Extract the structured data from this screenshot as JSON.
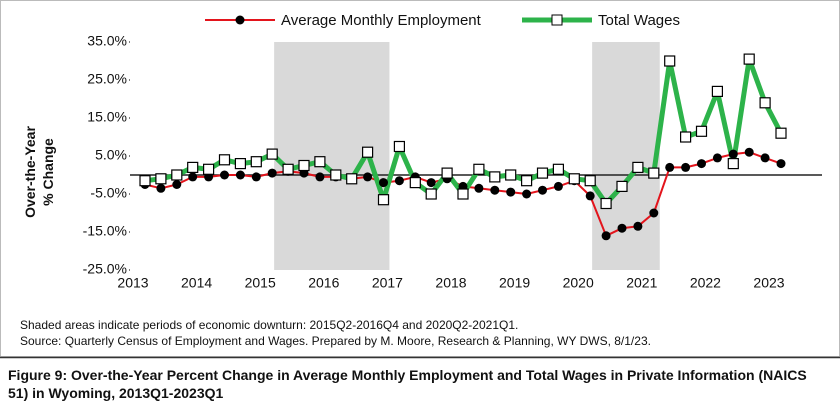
{
  "chart_data": {
    "type": "line",
    "ylabel": [
      "Over-the-Year",
      "% Change"
    ],
    "categories": [
      "2013",
      null,
      null,
      null,
      "2014",
      null,
      null,
      null,
      "2015",
      null,
      null,
      null,
      "2016",
      null,
      null,
      null,
      "2017",
      null,
      null,
      null,
      "2018",
      null,
      null,
      null,
      "2019",
      null,
      null,
      null,
      "2020",
      null,
      null,
      null,
      "2021",
      null,
      null,
      null,
      "2022",
      null,
      null,
      null,
      "2023"
    ],
    "series": [
      {
        "name": "Average Monthly Employment",
        "color": "#e3141c",
        "marker": "circle",
        "values": [
          -2.5,
          -3.5,
          -2.5,
          -0.5,
          -0.5,
          0,
          0,
          -0.5,
          0.5,
          1,
          0.5,
          -0.5,
          -0.5,
          -1,
          -0.5,
          -2,
          -1.5,
          -0.5,
          -2,
          -1,
          -3,
          -3.5,
          -4,
          -4.5,
          -5,
          -4,
          -3,
          -1.5,
          -5.5,
          -16,
          -14,
          -13.5,
          -10,
          2,
          2,
          3,
          4.5,
          5.5,
          6,
          4.5,
          3
        ]
      },
      {
        "name": "Total Wages",
        "color": "#2db34a",
        "marker": "square",
        "values": [
          -1.5,
          -1,
          0,
          2,
          1.5,
          4,
          3,
          3.5,
          5.5,
          1.5,
          2.5,
          3.5,
          0,
          -1,
          6,
          -6.5,
          7.5,
          -2,
          -5,
          0.5,
          -5,
          1.5,
          -0.5,
          0,
          -1.5,
          0.5,
          1.5,
          -1,
          -1.5,
          -7.5,
          -3,
          2,
          0.5,
          30,
          10,
          11.5,
          22,
          3,
          30.5,
          19,
          11
        ]
      }
    ],
    "shaded": [
      [
        9,
        15
      ],
      [
        29,
        32
      ]
    ],
    "ylim": [
      -25,
      35
    ],
    "yticks": [
      {
        "value": -25,
        "label": "-25.0%"
      },
      {
        "value": -15,
        "label": "-15.0%"
      },
      {
        "value": -5,
        "label": "-5.0%"
      },
      {
        "value": 5,
        "label": "5.0%"
      },
      {
        "value": 15,
        "label": "15.0%"
      },
      {
        "value": 25,
        "label": "25.0%"
      },
      {
        "value": 35,
        "label": "35.0%"
      }
    ],
    "notes": [
      "Shaded areas indicate periods of economic downturn: 2015Q2-2016Q4 and 2020Q2-2021Q1.",
      "Source: Quarterly Census of Employment and Wages. Prepared by M. Moore, Research & Planning, WY DWS, 8/1/23."
    ],
    "caption": "Figure 9: Over-the-Year Percent Change in Average Monthly Employment and Total Wages in Private Information (NAICS 51) in Wyoming, 2013Q1-2023Q1"
  }
}
